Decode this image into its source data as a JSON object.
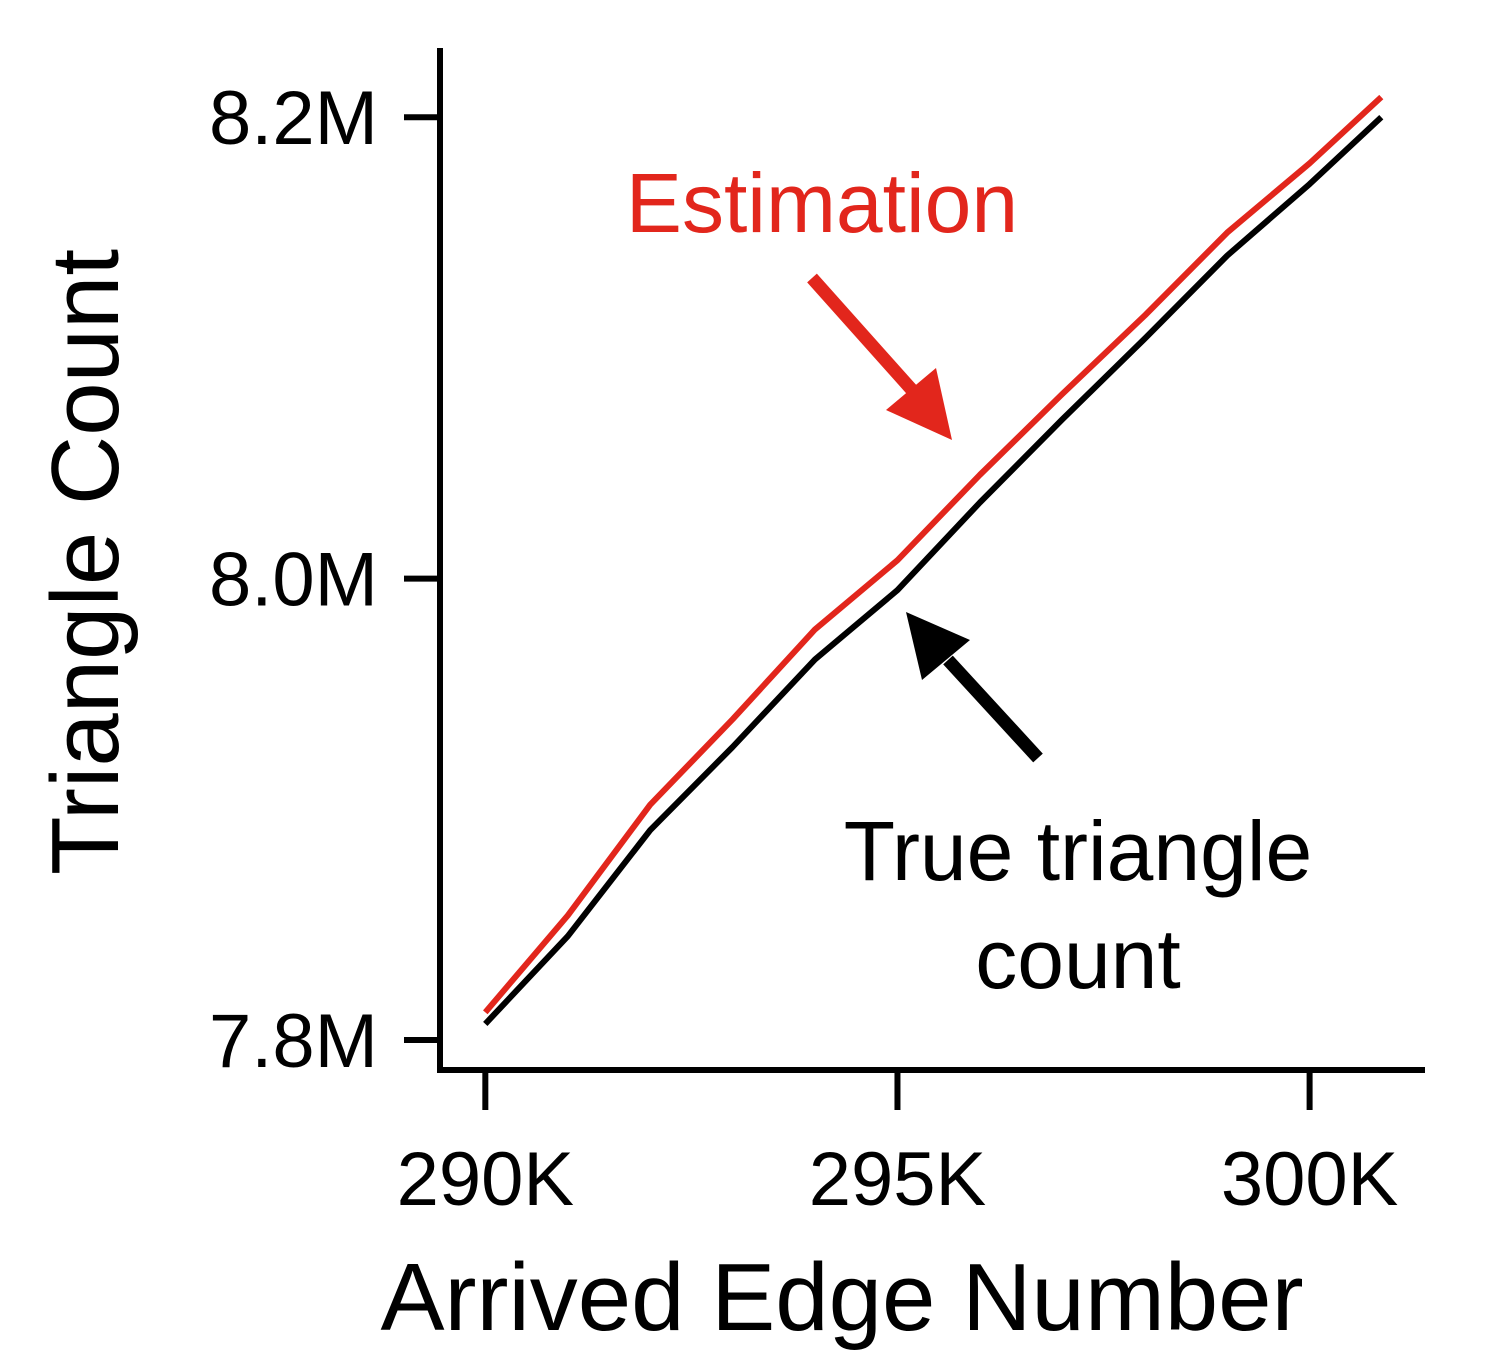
{
  "chart_data": {
    "type": "line",
    "x_label": "Arrived Edge Number",
    "y_label": "Triangle Count",
    "x": [
      290000,
      291000,
      292000,
      293000,
      294000,
      295000,
      296000,
      297000,
      298000,
      299000,
      300000,
      300870
    ],
    "series": [
      {
        "color": "#000000",
        "values": [
          7807000,
          7845000,
          7891000,
          7927000,
          7965000,
          7995000,
          8033000,
          8069000,
          8104000,
          8140000,
          8171000,
          8200000
        ]
      },
      {
        "color": "#e2261c",
        "values": [
          7812000,
          7854000,
          7902000,
          7939000,
          7978000,
          8008000,
          8045000,
          8080000,
          8114000,
          8150000,
          8180000,
          8208700
        ]
      }
    ],
    "xlim": [
      289450,
      301400
    ],
    "ylim": [
      7787000,
      8230000
    ],
    "xticks": [
      {
        "value": 290000,
        "label": "290K"
      },
      {
        "value": 295000,
        "label": "295K"
      },
      {
        "value": 300000,
        "label": "300K"
      }
    ],
    "yticks": [
      {
        "value": 7800000,
        "label": "7.8M"
      },
      {
        "value": 8000000,
        "label": "8.0M"
      },
      {
        "value": 8200000,
        "label": "8.2M"
      }
    ],
    "annotations": [
      {
        "text": [
          "Estimation"
        ],
        "color": "#e2261c"
      },
      {
        "text": [
          "True triangle",
          "count"
        ],
        "color": "#000000"
      }
    ]
  }
}
